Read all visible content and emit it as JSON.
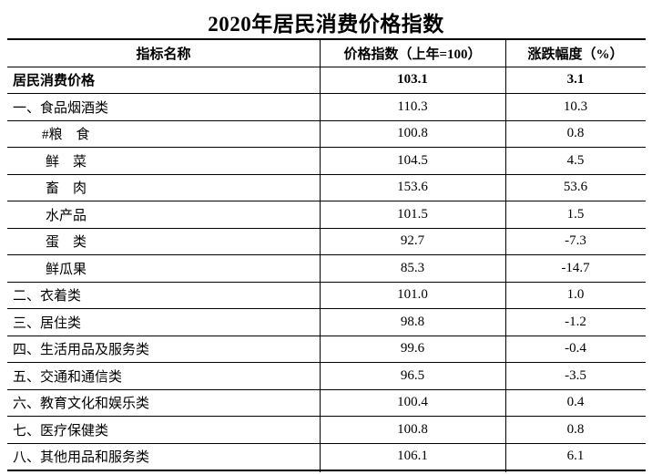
{
  "title": "2020年居民消费价格指数",
  "colors": {
    "text": "#000000",
    "background": "#ffffff",
    "rule": "#000000"
  },
  "table": {
    "headers": [
      "指标名称",
      "价格指数（上年=100）",
      "涨跌幅度（%）"
    ],
    "rows": [
      {
        "name": "居民消费价格",
        "index": "103.1",
        "change": "3.1",
        "bold": true,
        "indent": 0
      },
      {
        "name": "一、食品烟酒类",
        "index": "110.3",
        "change": "10.3",
        "bold": false,
        "indent": 0
      },
      {
        "name": "#粮　食",
        "index": "100.8",
        "change": "0.8",
        "bold": false,
        "indent": 2
      },
      {
        "name": "鲜　菜",
        "index": "104.5",
        "change": "4.5",
        "bold": false,
        "indent": 1
      },
      {
        "name": "畜　肉",
        "index": "153.6",
        "change": "53.6",
        "bold": false,
        "indent": 1
      },
      {
        "name": "水产品",
        "index": "101.5",
        "change": "1.5",
        "bold": false,
        "indent": 1
      },
      {
        "name": "蛋　类",
        "index": "92.7",
        "change": "-7.3",
        "bold": false,
        "indent": 1
      },
      {
        "name": "鲜瓜果",
        "index": "85.3",
        "change": "-14.7",
        "bold": false,
        "indent": 1
      },
      {
        "name": "二、衣着类",
        "index": "101.0",
        "change": "1.0",
        "bold": false,
        "indent": 0
      },
      {
        "name": "三、居住类",
        "index": "98.8",
        "change": "-1.2",
        "bold": false,
        "indent": 0
      },
      {
        "name": "四、生活用品及服务类",
        "index": "99.6",
        "change": "-0.4",
        "bold": false,
        "indent": 0
      },
      {
        "name": "五、交通和通信类",
        "index": "96.5",
        "change": "-3.5",
        "bold": false,
        "indent": 0
      },
      {
        "name": "六、教育文化和娱乐类",
        "index": "100.4",
        "change": "0.4",
        "bold": false,
        "indent": 0
      },
      {
        "name": "七、医疗保健类",
        "index": "100.8",
        "change": "0.8",
        "bold": false,
        "indent": 0
      },
      {
        "name": "八、其他用品和服务类",
        "index": "106.1",
        "change": "6.1",
        "bold": false,
        "indent": 0
      }
    ]
  }
}
